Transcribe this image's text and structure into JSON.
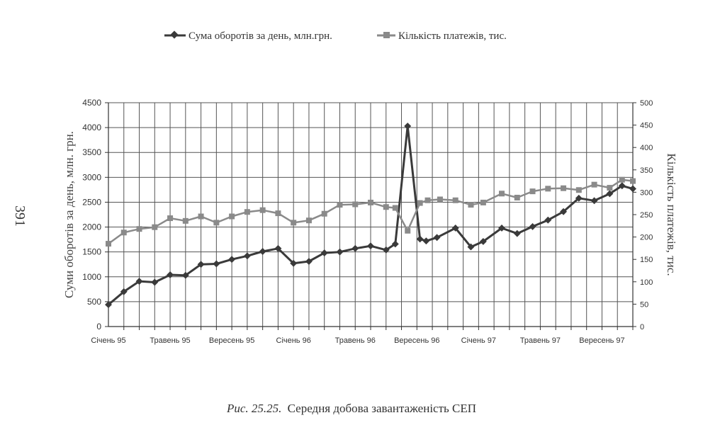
{
  "page": {
    "side_number": "391",
    "caption_prefix": "Рис. 25.25.",
    "caption_text": "Середня добова завантаженість СЕП"
  },
  "chart_data": {
    "type": "line",
    "title": "",
    "xlabel": "",
    "ylabel": "Суми оборотів за день, млн. грн.",
    "y2label": "Кількість платежів, тис.",
    "ylim": [
      0,
      4500
    ],
    "y2lim": [
      0,
      500
    ],
    "yticks": [
      0,
      500,
      1000,
      1500,
      2000,
      2500,
      3000,
      3500,
      4000,
      4500
    ],
    "y2ticks": [
      0,
      50,
      100,
      150,
      200,
      250,
      300,
      350,
      400,
      450,
      500
    ],
    "grid": true,
    "legend_position": "top",
    "x_labels": [
      {
        "index": 0,
        "label": "Січень 95"
      },
      {
        "index": 4,
        "label": "Травень 95"
      },
      {
        "index": 8,
        "label": "Вересень 95"
      },
      {
        "index": 12,
        "label": "Січень 96"
      },
      {
        "index": 16,
        "label": "Травень 96"
      },
      {
        "index": 20,
        "label": "Вересень 96"
      },
      {
        "index": 24,
        "label": "Січень 97"
      },
      {
        "index": 28,
        "label": "Травень 97"
      },
      {
        "index": 32,
        "label": "Вересень 97"
      }
    ],
    "series": [
      {
        "name": "Сума оборотів за день, млн.грн.",
        "axis": "left",
        "marker": "diamond",
        "color": "#3a3a3a",
        "values": [
          [
            0,
            440
          ],
          [
            1,
            700
          ],
          [
            2,
            910
          ],
          [
            3,
            890
          ],
          [
            4,
            1040
          ],
          [
            5,
            1030
          ],
          [
            6,
            1250
          ],
          [
            7,
            1260
          ],
          [
            8,
            1350
          ],
          [
            9,
            1420
          ],
          [
            10,
            1510
          ],
          [
            11,
            1570
          ],
          [
            12,
            1270
          ],
          [
            13,
            1310
          ],
          [
            14,
            1480
          ],
          [
            15,
            1500
          ],
          [
            16,
            1570
          ],
          [
            17,
            1620
          ],
          [
            18,
            1540
          ],
          [
            18.6,
            1660
          ],
          [
            19.4,
            4030
          ],
          [
            20.2,
            1760
          ],
          [
            20.6,
            1720
          ],
          [
            21.3,
            1790
          ],
          [
            22.5,
            1980
          ],
          [
            23.5,
            1600
          ],
          [
            24.3,
            1710
          ],
          [
            25.5,
            1980
          ],
          [
            26.5,
            1870
          ],
          [
            27.5,
            2010
          ],
          [
            28.5,
            2140
          ],
          [
            29.5,
            2310
          ],
          [
            30.5,
            2580
          ],
          [
            31.5,
            2530
          ],
          [
            32.5,
            2670
          ],
          [
            33.3,
            2830
          ],
          [
            34,
            2770
          ]
        ]
      },
      {
        "name": "Кількість платежів, тис.",
        "axis": "right",
        "marker": "square",
        "color": "#8a8a8a",
        "values": [
          [
            0,
            185
          ],
          [
            1,
            210
          ],
          [
            2,
            218
          ],
          [
            3,
            222
          ],
          [
            4,
            242
          ],
          [
            5,
            236
          ],
          [
            6,
            246
          ],
          [
            7,
            232
          ],
          [
            8,
            246
          ],
          [
            9,
            256
          ],
          [
            10,
            260
          ],
          [
            11,
            253
          ],
          [
            12,
            232
          ],
          [
            13,
            237
          ],
          [
            14,
            252
          ],
          [
            15,
            272
          ],
          [
            16,
            273
          ],
          [
            17,
            277
          ],
          [
            18,
            267
          ],
          [
            18.6,
            265
          ],
          [
            19.4,
            214
          ],
          [
            20.2,
            276
          ],
          [
            20.7,
            282
          ],
          [
            21.5,
            284
          ],
          [
            22.5,
            282
          ],
          [
            23.5,
            272
          ],
          [
            24.3,
            277
          ],
          [
            25.5,
            297
          ],
          [
            26.5,
            288
          ],
          [
            27.5,
            302
          ],
          [
            28.5,
            308
          ],
          [
            29.5,
            309
          ],
          [
            30.5,
            305
          ],
          [
            31.5,
            317
          ],
          [
            32.5,
            310
          ],
          [
            33.3,
            328
          ],
          [
            34,
            325
          ]
        ]
      }
    ]
  }
}
